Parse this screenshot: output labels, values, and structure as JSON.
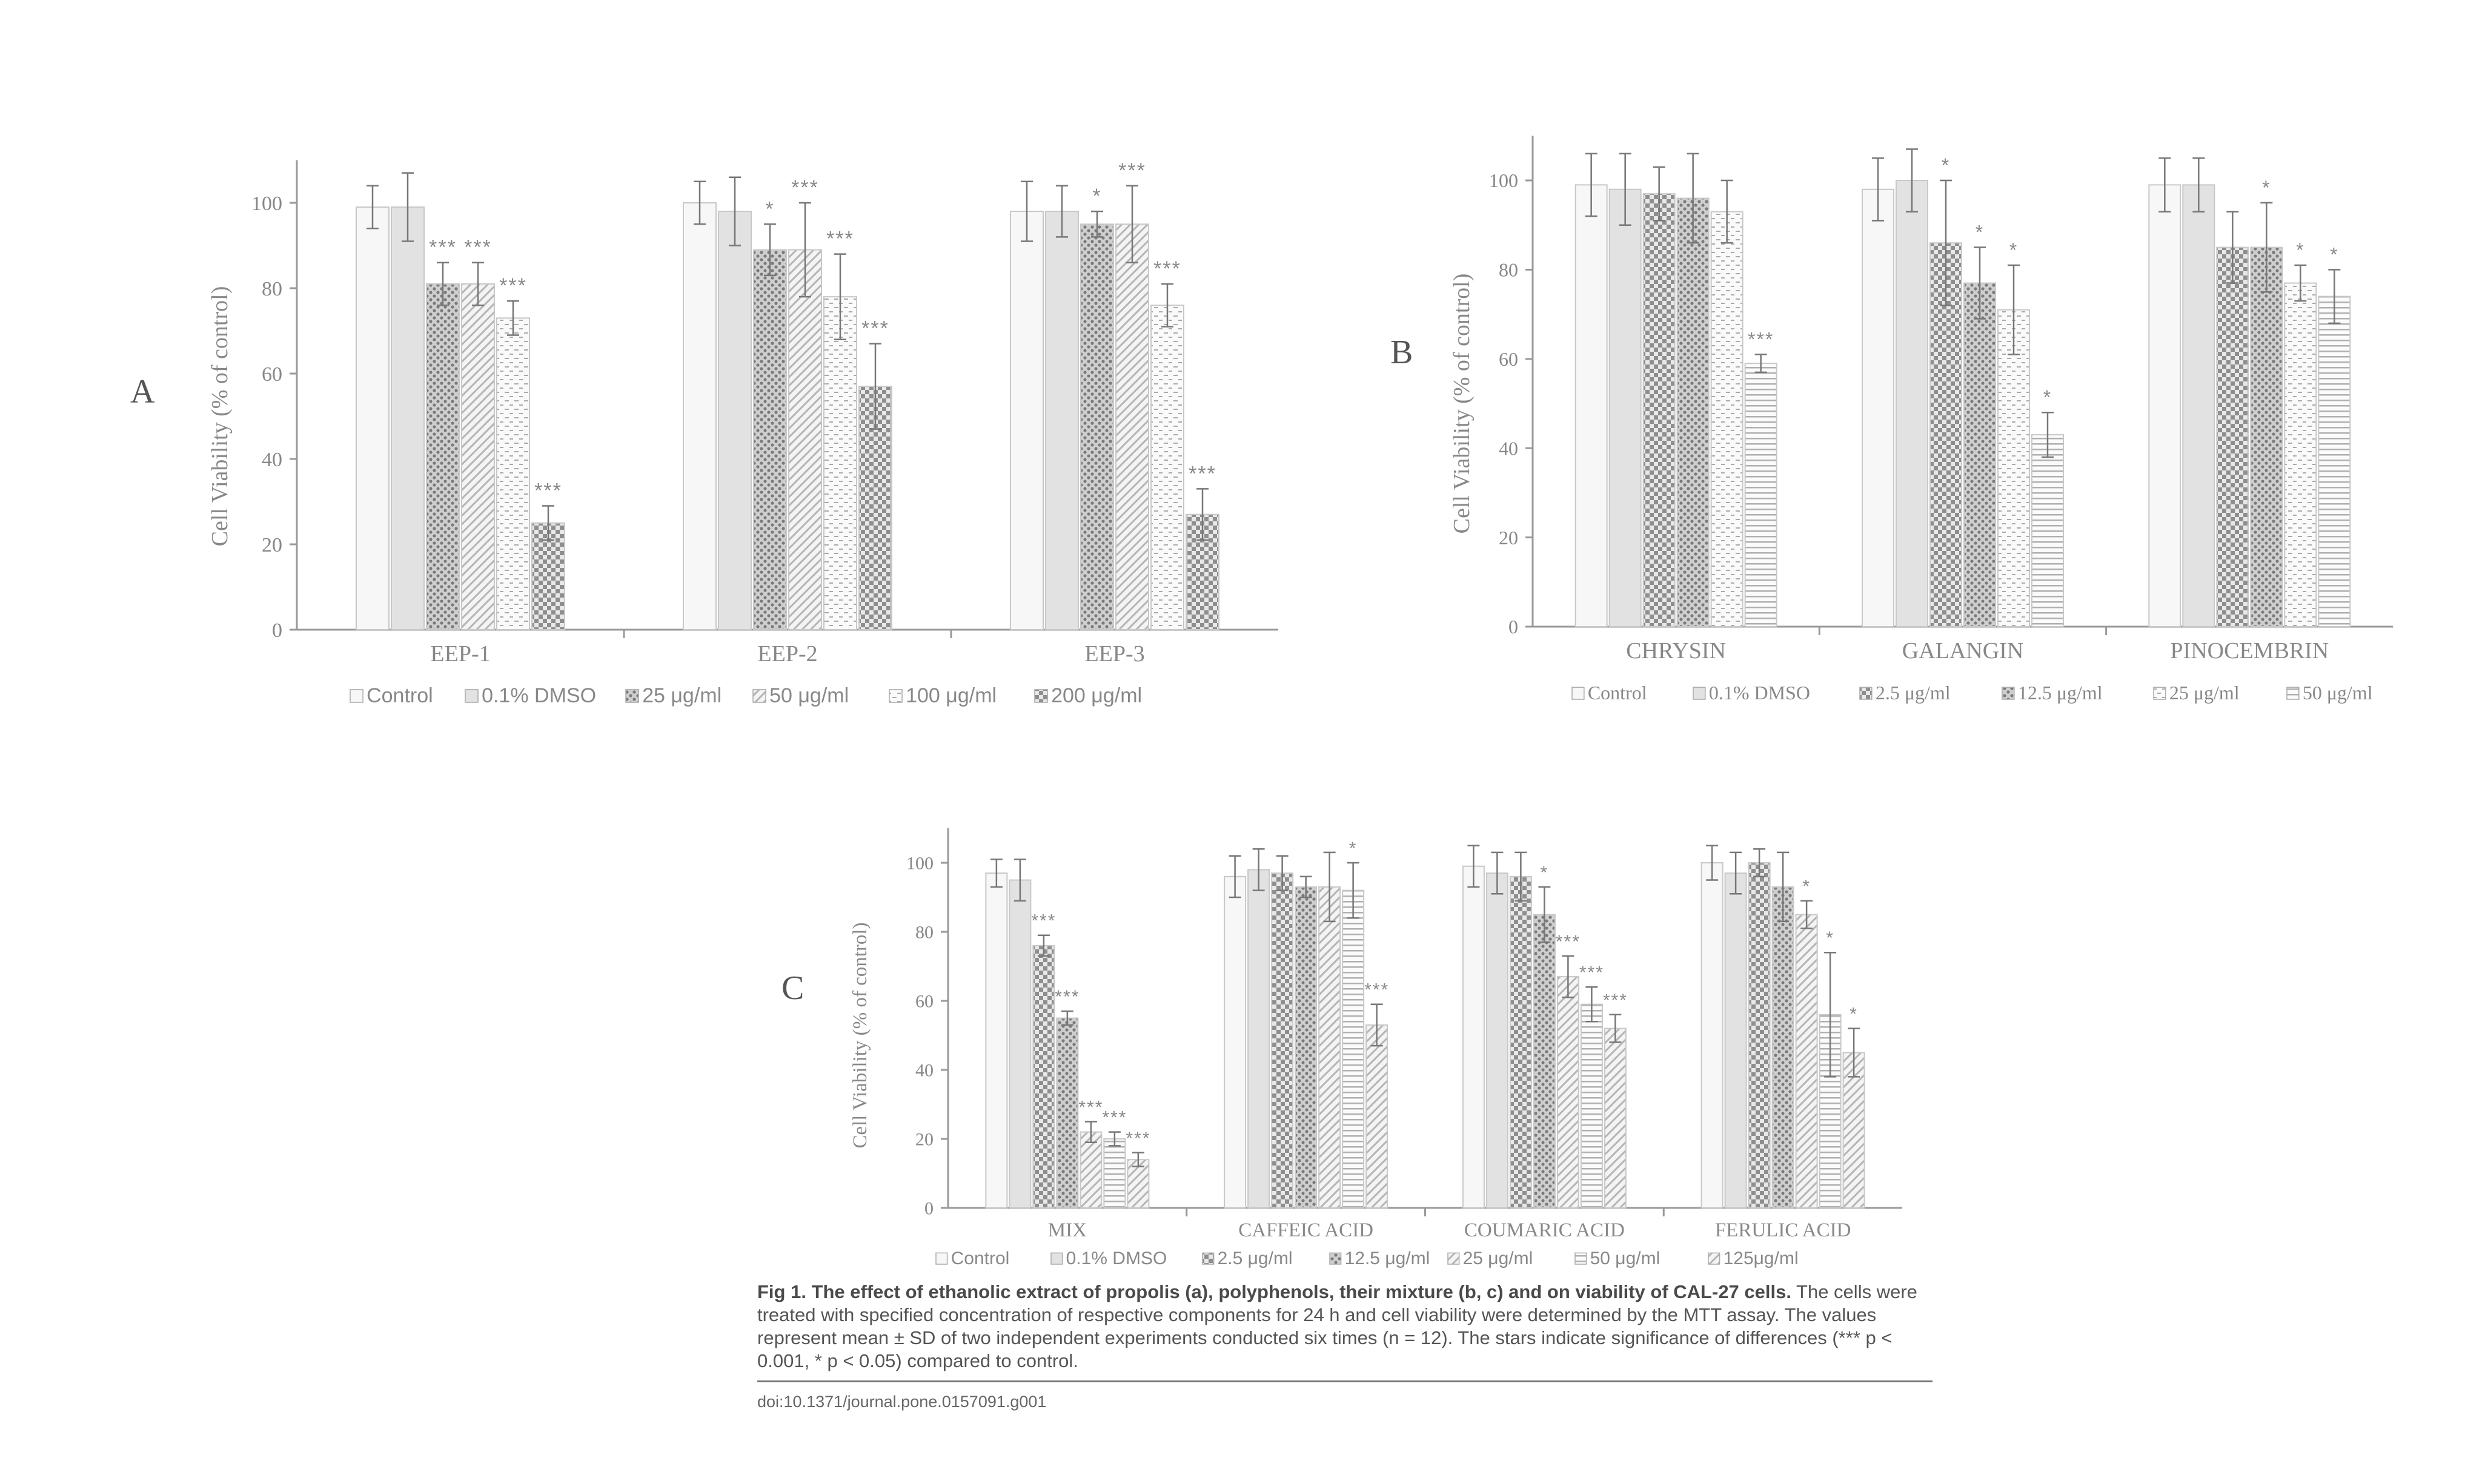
{
  "chart_data": [
    {
      "type": "bar",
      "panel_label": "A",
      "ylabel": "Cell Viability (% of control)",
      "ylim": [
        0,
        110
      ],
      "yticks": [
        "0",
        "20",
        "40",
        "60",
        "80",
        "100"
      ],
      "categories": [
        "EEP-1",
        "EEP-2",
        "EEP-3"
      ],
      "series": [
        {
          "name": "Control",
          "pattern": "plain",
          "values": [
            99,
            100,
            98
          ],
          "errors": [
            5,
            5,
            7
          ],
          "stars": [
            "",
            "",
            ""
          ]
        },
        {
          "name": "0.1% DMSO",
          "pattern": "gray",
          "values": [
            99,
            98,
            98
          ],
          "errors": [
            8,
            8,
            6
          ],
          "stars": [
            "",
            "",
            ""
          ]
        },
        {
          "name": "25 μg/ml",
          "pattern": "dots",
          "values": [
            81,
            89,
            95
          ],
          "errors": [
            5,
            6,
            3
          ],
          "stars": [
            "***",
            "*",
            "*"
          ]
        },
        {
          "name": "50 μg/ml",
          "pattern": "diag",
          "values": [
            81,
            89,
            95
          ],
          "errors": [
            5,
            11,
            9
          ],
          "stars": [
            "***",
            "***",
            "***"
          ]
        },
        {
          "name": "100 μg/ml",
          "pattern": "dash",
          "values": [
            73,
            78,
            76
          ],
          "errors": [
            4,
            10,
            5
          ],
          "stars": [
            "***",
            "***",
            "***"
          ]
        },
        {
          "name": "200 μg/ml",
          "pattern": "check",
          "values": [
            25,
            57,
            27
          ],
          "errors": [
            4,
            10,
            6
          ],
          "stars": [
            "***",
            "***",
            "***"
          ]
        }
      ]
    },
    {
      "type": "bar",
      "panel_label": "B",
      "ylabel": "Cell Viability (% of control)",
      "ylim": [
        0,
        110
      ],
      "yticks": [
        "0",
        "20",
        "40",
        "60",
        "80",
        "100"
      ],
      "categories": [
        "CHRYSIN",
        "GALANGIN",
        "PINOCEMBRIN"
      ],
      "series": [
        {
          "name": "Control",
          "pattern": "plain",
          "values": [
            99,
            98,
            99
          ],
          "errors": [
            7,
            7,
            6
          ],
          "stars": [
            "",
            "",
            ""
          ]
        },
        {
          "name": "0.1% DMSO",
          "pattern": "gray",
          "values": [
            98,
            100,
            99
          ],
          "errors": [
            8,
            7,
            6
          ],
          "stars": [
            "",
            "",
            ""
          ]
        },
        {
          "name": "2.5 μg/ml",
          "pattern": "check",
          "values": [
            97,
            86,
            85
          ],
          "errors": [
            6,
            14,
            8
          ],
          "stars": [
            "",
            "*",
            ""
          ]
        },
        {
          "name": "12.5 μg/ml",
          "pattern": "dots",
          "values": [
            96,
            77,
            85
          ],
          "errors": [
            10,
            8,
            10
          ],
          "stars": [
            "",
            "*",
            "*"
          ]
        },
        {
          "name": "25 μg/ml",
          "pattern": "dash",
          "values": [
            93,
            71,
            77
          ],
          "errors": [
            7,
            10,
            4
          ],
          "stars": [
            "",
            "*",
            "*"
          ]
        },
        {
          "name": "50 μg/ml",
          "pattern": "hlines",
          "values": [
            59,
            43,
            74
          ],
          "errors": [
            2,
            5,
            6
          ],
          "stars": [
            "***",
            "*",
            "*"
          ]
        }
      ]
    },
    {
      "type": "bar",
      "panel_label": "C",
      "ylabel": "Cell Viability (% of control)",
      "ylim": [
        0,
        110
      ],
      "yticks": [
        "0",
        "20",
        "40",
        "60",
        "80",
        "100"
      ],
      "categories": [
        "MIX",
        "CAFFEIC ACID",
        "COUMARIC ACID",
        "FERULIC ACID"
      ],
      "series": [
        {
          "name": "Control",
          "pattern": "plain",
          "values": [
            97,
            96,
            99,
            100
          ],
          "errors": [
            4,
            6,
            6,
            5
          ],
          "stars": [
            "",
            "",
            "",
            ""
          ]
        },
        {
          "name": "0.1% DMSO",
          "pattern": "gray",
          "values": [
            95,
            98,
            97,
            97
          ],
          "errors": [
            6,
            6,
            6,
            6
          ],
          "stars": [
            "",
            "",
            "",
            ""
          ]
        },
        {
          "name": "2.5 μg/ml",
          "pattern": "check",
          "values": [
            76,
            97,
            96,
            100
          ],
          "errors": [
            3,
            5,
            7,
            4
          ],
          "stars": [
            "***",
            "",
            "",
            ""
          ]
        },
        {
          "name": "12.5 μg/ml",
          "pattern": "dots",
          "values": [
            55,
            93,
            85,
            93
          ],
          "errors": [
            2,
            3,
            8,
            10
          ],
          "stars": [
            "***",
            "",
            "*",
            ""
          ]
        },
        {
          "name": "25 μg/ml",
          "pattern": "diag",
          "values": [
            22,
            93,
            67,
            85
          ],
          "errors": [
            3,
            10,
            6,
            4
          ],
          "stars": [
            "***",
            "",
            "***",
            "*"
          ]
        },
        {
          "name": "50 μg/ml",
          "pattern": "hlines",
          "values": [
            20,
            92,
            59,
            56
          ],
          "errors": [
            2,
            8,
            5,
            18
          ],
          "stars": [
            "***",
            "*",
            "***",
            "*"
          ]
        },
        {
          "name": "125μg/ml",
          "pattern": "diag",
          "values": [
            14,
            53,
            52,
            45
          ],
          "errors": [
            2,
            6,
            4,
            7
          ],
          "stars": [
            "***",
            "***",
            "***",
            "*"
          ]
        }
      ]
    }
  ],
  "caption": {
    "title": "Fig 1. The effect of ethanolic extract of propolis (a), polyphenols, their mixture (b, c) and on viability of CAL-27 cells.",
    "body": "The cells were treated with specified concentration of respective components for 24 h and cell viability were determined by the MTT assay. The values represent mean ± SD of two independent experiments conducted six times (n = 12). The stars indicate significance of differences (*** p < 0.001, * p < 0.05) compared to control."
  },
  "doi": "doi:10.1371/journal.pone.0157091.g001"
}
